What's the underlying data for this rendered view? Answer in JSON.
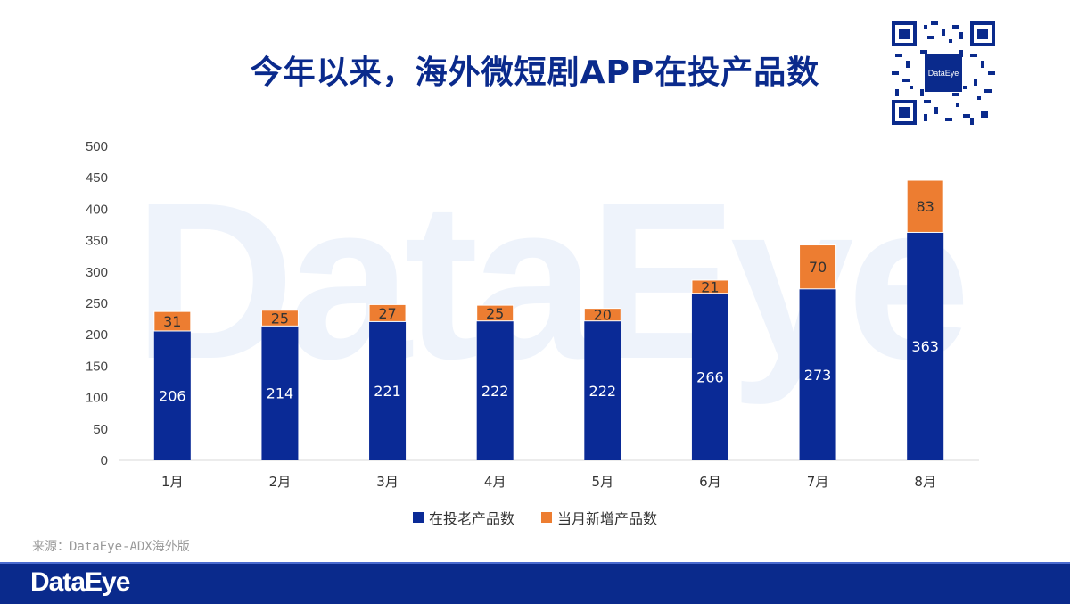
{
  "header": {
    "title": "今年以来，海外微短剧APP在投产品数",
    "qr_label": "DataEye"
  },
  "watermark": "DataEye",
  "source": "来源：DataEye-ADX海外版",
  "footer": {
    "logo": "DataEye"
  },
  "colors": {
    "old": "#0a2a96",
    "new": "#ed7d31",
    "title": "#0a2a8c"
  },
  "chart_data": {
    "type": "bar",
    "stacked": true,
    "categories": [
      "1月",
      "2月",
      "3月",
      "4月",
      "5月",
      "6月",
      "7月",
      "8月"
    ],
    "series": [
      {
        "name": "在投老产品数",
        "values": [
          206,
          214,
          221,
          222,
          222,
          266,
          273,
          363
        ]
      },
      {
        "name": "当月新增产品数",
        "values": [
          31,
          25,
          27,
          25,
          20,
          21,
          70,
          83
        ]
      }
    ],
    "ylim": [
      0,
      500
    ],
    "yticks": [
      0,
      50,
      100,
      150,
      200,
      250,
      300,
      350,
      400,
      450,
      500
    ],
    "legend_position": "bottom",
    "grid": false
  }
}
